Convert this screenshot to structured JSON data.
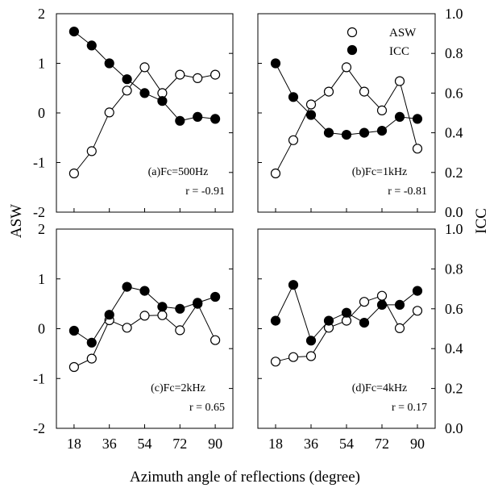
{
  "x_label": "Azimuth angle of reflections (degree)",
  "y_left_label": "ASW",
  "y_right_label": "ICC",
  "legend": [
    {
      "name": "ASW",
      "marker": "open-circle"
    },
    {
      "name": "ICC",
      "marker": "filled-circle"
    }
  ],
  "chart_data": [
    {
      "type": "line",
      "title": "(a)Fc=500Hz",
      "r_text": "r = -0.91",
      "x": [
        18,
        27,
        36,
        45,
        54,
        63,
        72,
        81,
        90
      ],
      "x_ticks": [
        "18",
        "36",
        "54",
        "72",
        "90"
      ],
      "y_left_ticks": [
        "2",
        "1",
        "0",
        "-1",
        "-2"
      ],
      "y_right_ticks": [
        "1.0",
        "0.8",
        "0.6",
        "0.4",
        "0.2",
        "0.0"
      ],
      "xlim": [
        9,
        99
      ],
      "ylim_left": [
        -2,
        2
      ],
      "ylim_right": [
        0,
        1
      ],
      "series": [
        {
          "name": "ASW",
          "axis": "left",
          "marker": "open",
          "values": [
            -1.22,
            -0.77,
            0.01,
            0.45,
            0.92,
            0.4,
            0.77,
            0.7,
            0.77
          ]
        },
        {
          "name": "ICC",
          "axis": "right",
          "marker": "filled",
          "values": [
            0.91,
            0.84,
            0.75,
            0.67,
            0.6,
            0.56,
            0.46,
            0.48,
            0.47
          ]
        }
      ]
    },
    {
      "type": "line",
      "title": "(b)Fc=1kHz",
      "r_text": "r = -0.81",
      "x": [
        18,
        27,
        36,
        45,
        54,
        63,
        72,
        81,
        90
      ],
      "x_ticks": [
        "18",
        "36",
        "54",
        "72",
        "90"
      ],
      "y_left_ticks": [
        "2",
        "1",
        "0",
        "-1",
        "-2"
      ],
      "y_right_ticks": [
        "1.0",
        "0.8",
        "0.6",
        "0.4",
        "0.2",
        "0.0"
      ],
      "xlim": [
        9,
        99
      ],
      "ylim_left": [
        -2,
        2
      ],
      "ylim_right": [
        0,
        1
      ],
      "series": [
        {
          "name": "ASW",
          "axis": "left",
          "marker": "open",
          "values": [
            -1.22,
            -0.55,
            0.17,
            0.43,
            0.92,
            0.43,
            0.05,
            0.64,
            -0.72
          ]
        },
        {
          "name": "ICC",
          "axis": "right",
          "marker": "filled",
          "values": [
            0.75,
            0.58,
            0.49,
            0.4,
            0.39,
            0.4,
            0.41,
            0.48,
            0.47
          ]
        }
      ]
    },
    {
      "type": "line",
      "title": "(c)Fc=2kHz",
      "r_text": "r = 0.65",
      "x": [
        18,
        27,
        36,
        45,
        54,
        63,
        72,
        81,
        90
      ],
      "x_ticks": [
        "18",
        "36",
        "54",
        "72",
        "90"
      ],
      "y_left_ticks": [
        "2",
        "1",
        "0",
        "-1",
        "-2"
      ],
      "y_right_ticks": [
        "1.0",
        "0.8",
        "0.6",
        "0.4",
        "0.2",
        "0.0"
      ],
      "xlim": [
        9,
        99
      ],
      "ylim_left": [
        -2,
        2
      ],
      "ylim_right": [
        0,
        1
      ],
      "series": [
        {
          "name": "ASW",
          "axis": "left",
          "marker": "open",
          "values": [
            -0.77,
            -0.6,
            0.17,
            0.02,
            0.26,
            0.27,
            -0.03,
            0.5,
            -0.23
          ]
        },
        {
          "name": "ICC",
          "axis": "right",
          "marker": "filled",
          "values": [
            0.49,
            0.43,
            0.57,
            0.71,
            0.69,
            0.61,
            0.6,
            0.63,
            0.66
          ]
        }
      ]
    },
    {
      "type": "line",
      "title": "(d)Fc=4kHz",
      "r_text": "r = 0.17",
      "x": [
        18,
        27,
        36,
        45,
        54,
        63,
        72,
        81,
        90
      ],
      "x_ticks": [
        "18",
        "36",
        "54",
        "72",
        "90"
      ],
      "y_left_ticks": [
        "2",
        "1",
        "0",
        "-1",
        "-2"
      ],
      "y_right_ticks": [
        "1.0",
        "0.8",
        "0.6",
        "0.4",
        "0.2",
        "0.0"
      ],
      "xlim": [
        9,
        99
      ],
      "ylim_left": [
        -2,
        2
      ],
      "ylim_right": [
        0,
        1
      ],
      "series": [
        {
          "name": "ASW",
          "axis": "left",
          "marker": "open",
          "values": [
            -0.66,
            -0.57,
            -0.55,
            0.02,
            0.16,
            0.54,
            0.66,
            0.01,
            0.36
          ]
        },
        {
          "name": "ICC",
          "axis": "right",
          "marker": "filled",
          "values": [
            0.54,
            0.72,
            0.44,
            0.54,
            0.58,
            0.53,
            0.62,
            0.62,
            0.69
          ]
        }
      ]
    }
  ]
}
